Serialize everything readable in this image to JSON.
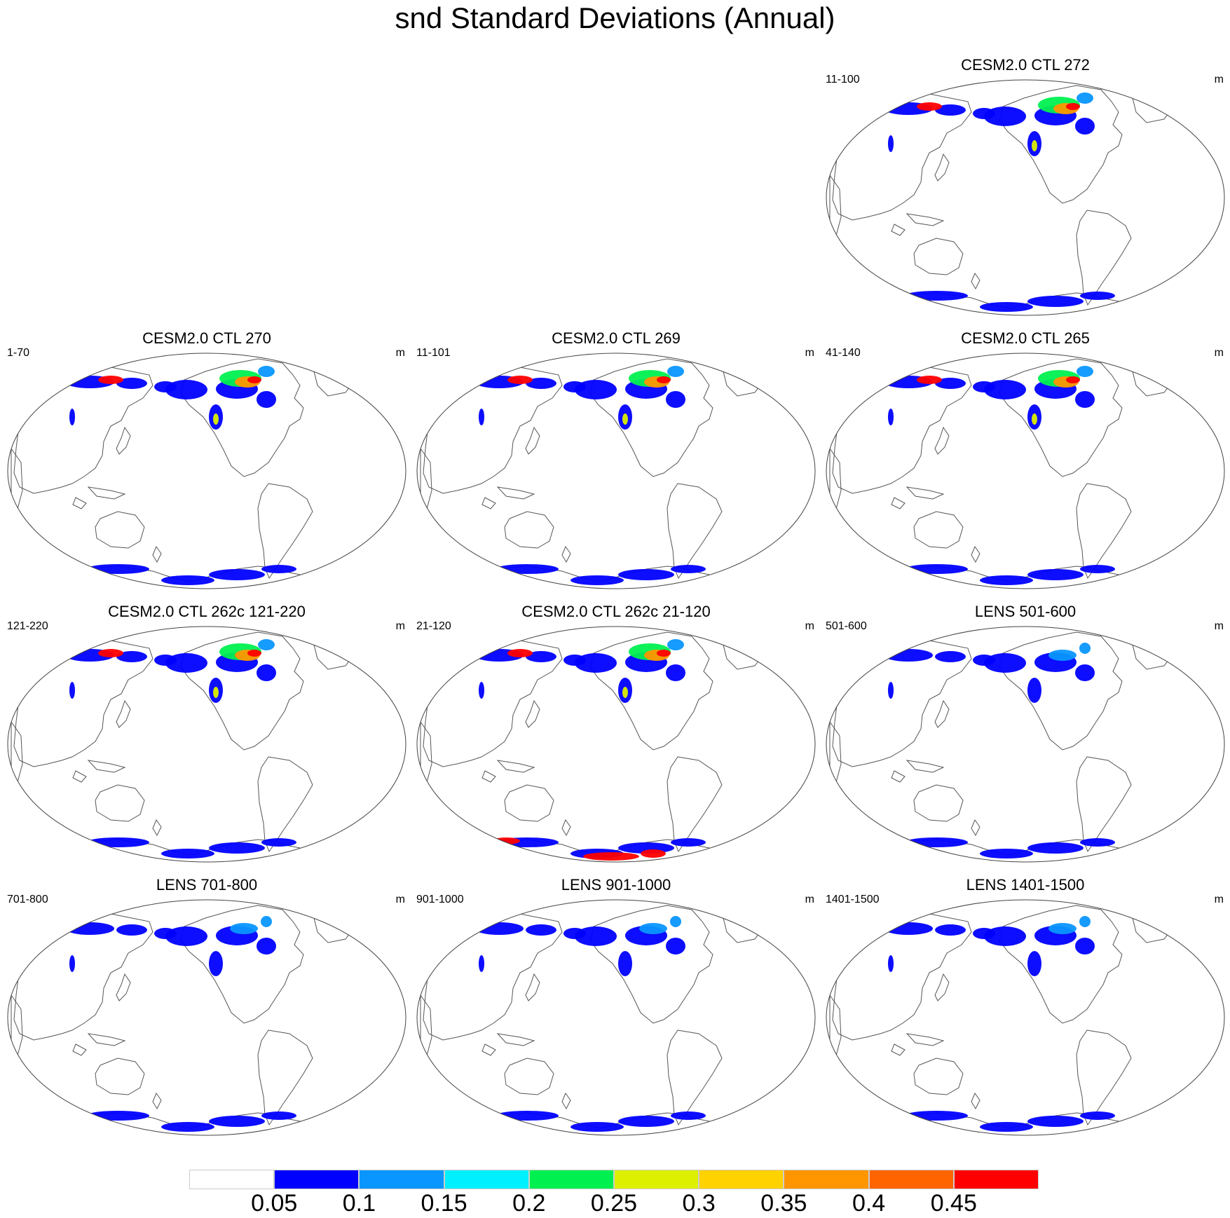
{
  "title": "snd Standard Deviations (Annual)",
  "units": "m",
  "panels": [
    {
      "id": "ctl272",
      "title": "CESM2.0 CTL 272",
      "range": "11-100",
      "row": 0,
      "col": 2,
      "snow": "ctl"
    },
    {
      "id": "ctl270",
      "title": "CESM2.0 CTL 270",
      "range": "1-70",
      "row": 1,
      "col": 0,
      "snow": "ctl"
    },
    {
      "id": "ctl269",
      "title": "CESM2.0 CTL 269",
      "range": "11-101",
      "row": 1,
      "col": 1,
      "snow": "ctl"
    },
    {
      "id": "ctl265",
      "title": "CESM2.0 CTL 265",
      "range": "41-140",
      "row": 1,
      "col": 2,
      "snow": "ctl"
    },
    {
      "id": "ctl262c_121",
      "title": "CESM2.0 CTL 262c 121-220",
      "range": "121-220",
      "row": 2,
      "col": 0,
      "snow": "ctl"
    },
    {
      "id": "ctl262c_21",
      "title": "CESM2.0 CTL 262c 21-120",
      "range": "21-120",
      "row": 2,
      "col": 1,
      "snow": "ctl-high"
    },
    {
      "id": "lens501",
      "title": "LENS 501-600",
      "range": "501-600",
      "row": 2,
      "col": 2,
      "snow": "lens"
    },
    {
      "id": "lens701",
      "title": "LENS 701-800",
      "range": "701-800",
      "row": 3,
      "col": 0,
      "snow": "lens"
    },
    {
      "id": "lens901",
      "title": "LENS 901-1000",
      "range": "901-1000",
      "row": 3,
      "col": 1,
      "snow": "lens"
    },
    {
      "id": "lens1401",
      "title": "LENS 1401-1500",
      "range": "1401-1500",
      "row": 3,
      "col": 2,
      "snow": "lens"
    }
  ],
  "colorbar": {
    "colors": [
      "#ffffff",
      "#0000ff",
      "#0a96ff",
      "#00f0ff",
      "#00f050",
      "#dcf000",
      "#ffd200",
      "#ff9600",
      "#ff6400",
      "#ff0000"
    ],
    "labels": [
      "0.05",
      "0.1",
      "0.15",
      "0.2",
      "0.25",
      "0.3",
      "0.35",
      "0.4",
      "0.45"
    ]
  }
}
